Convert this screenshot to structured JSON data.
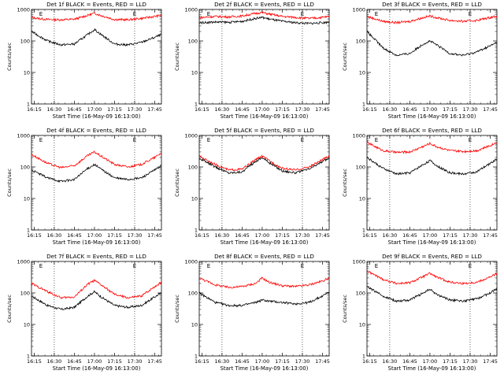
{
  "chart_data": [
    {
      "type": "line",
      "title": "Det 1f BLACK = Events, RED = LLD",
      "xlabel": "Start Time (16-May-09 16:13:00)",
      "ylabel": "Counts/sec",
      "yscale": "log",
      "ylim": [
        1,
        1000
      ],
      "x_ticks": [
        "16:15",
        "16:30",
        "16:45",
        "17:00",
        "17:15",
        "17:30",
        "17:45"
      ],
      "marker_label": "E",
      "marker_times": [
        "16:20",
        "17:30"
      ],
      "dotted_times": [
        "16:30",
        "17:30"
      ],
      "series": [
        {
          "color": "#ff0000",
          "x": [
            "16:13",
            "16:25",
            "16:35",
            "16:45",
            "16:55",
            "17:00",
            "17:05",
            "17:15",
            "17:25",
            "17:35",
            "17:45",
            "17:50"
          ],
          "values": [
            550,
            480,
            470,
            490,
            650,
            760,
            640,
            480,
            470,
            520,
            600,
            650
          ]
        },
        {
          "color": "#000000",
          "x": [
            "16:13",
            "16:25",
            "16:35",
            "16:45",
            "16:55",
            "17:00",
            "17:05",
            "17:15",
            "17:25",
            "17:35",
            "17:45",
            "17:50"
          ],
          "values": [
            200,
            100,
            75,
            80,
            160,
            230,
            160,
            80,
            75,
            90,
            130,
            160
          ]
        }
      ]
    },
    {
      "type": "line",
      "title": "Det 2f BLACK = Events, RED = LLD",
      "xlabel": "Start Time (16-May-09 16:13:00)",
      "ylabel": "Counts/sec",
      "yscale": "log",
      "ylim": [
        1,
        1000
      ],
      "x_ticks": [
        "16:15",
        "16:30",
        "16:45",
        "17:00",
        "17:15",
        "17:30",
        "17:45"
      ],
      "marker_label": "E",
      "marker_times": [
        "16:20",
        "17:30"
      ],
      "dotted_times": [
        "16:30",
        "17:30"
      ],
      "series": [
        {
          "color": "#ff0000",
          "x": [
            "16:13",
            "16:25",
            "16:35",
            "16:45",
            "16:55",
            "17:00",
            "17:05",
            "17:15",
            "17:25",
            "17:35",
            "17:45",
            "17:50"
          ],
          "values": [
            550,
            600,
            580,
            620,
            750,
            800,
            720,
            600,
            560,
            520,
            560,
            600
          ]
        },
        {
          "color": "#000000",
          "x": [
            "16:13",
            "16:25",
            "16:35",
            "16:45",
            "16:55",
            "17:00",
            "17:05",
            "17:15",
            "17:25",
            "17:35",
            "17:45",
            "17:50"
          ],
          "values": [
            380,
            400,
            390,
            420,
            520,
            560,
            500,
            420,
            380,
            360,
            380,
            400
          ]
        }
      ]
    },
    {
      "type": "line",
      "title": "Det 3f BLACK = Events, RED = LLD",
      "xlabel": "Start Time (16-May-09 16:13:00)",
      "ylabel": "Counts/sec",
      "yscale": "log",
      "ylim": [
        1,
        1000
      ],
      "x_ticks": [
        "16:15",
        "16:30",
        "16:45",
        "17:00",
        "17:15",
        "17:30",
        "17:45"
      ],
      "marker_label": "E",
      "marker_times": [
        "16:20",
        "17:30"
      ],
      "dotted_times": [
        "16:30",
        "17:30"
      ],
      "series": [
        {
          "color": "#ff0000",
          "x": [
            "16:13",
            "16:25",
            "16:35",
            "16:45",
            "16:55",
            "17:00",
            "17:05",
            "17:15",
            "17:25",
            "17:35",
            "17:45",
            "17:50"
          ],
          "values": [
            600,
            420,
            380,
            420,
            550,
            620,
            550,
            450,
            420,
            450,
            560,
            620
          ]
        },
        {
          "color": "#000000",
          "x": [
            "16:13",
            "16:25",
            "16:35",
            "16:45",
            "16:55",
            "17:00",
            "17:05",
            "17:15",
            "17:25",
            "17:35",
            "17:45",
            "17:50"
          ],
          "values": [
            200,
            60,
            35,
            40,
            80,
            100,
            75,
            40,
            35,
            45,
            70,
            90
          ]
        }
      ]
    },
    {
      "type": "line",
      "title": "Det 4f BLACK = Events, RED = LLD",
      "xlabel": "Start Time (16-May-09 16:13:00)",
      "ylabel": "Counts/sec",
      "yscale": "log",
      "ylim": [
        1,
        1000
      ],
      "x_ticks": [
        "16:15",
        "16:30",
        "16:45",
        "17:00",
        "17:15",
        "17:30",
        "17:45"
      ],
      "marker_label": "E",
      "marker_times": [
        "16:20",
        "17:30"
      ],
      "dotted_times": [
        "16:30",
        "17:30"
      ],
      "series": [
        {
          "color": "#ff0000",
          "x": [
            "16:13",
            "16:25",
            "16:35",
            "16:45",
            "16:55",
            "17:00",
            "17:05",
            "17:15",
            "17:25",
            "17:35",
            "17:45",
            "17:50"
          ],
          "values": [
            250,
            130,
            95,
            110,
            230,
            300,
            220,
            120,
            100,
            120,
            200,
            280
          ]
        },
        {
          "color": "#000000",
          "x": [
            "16:13",
            "16:25",
            "16:35",
            "16:45",
            "16:55",
            "17:00",
            "17:05",
            "17:15",
            "17:25",
            "17:35",
            "17:45",
            "17:50"
          ],
          "values": [
            80,
            45,
            35,
            40,
            90,
            120,
            85,
            45,
            40,
            45,
            80,
            110
          ]
        }
      ]
    },
    {
      "type": "line",
      "title": "Det 5f BLACK = Events, RED = LLD",
      "xlabel": "Start Time (16-May-09 16:13:00)",
      "ylabel": "Counts/sec",
      "yscale": "log",
      "ylim": [
        1,
        1000
      ],
      "x_ticks": [
        "16:15",
        "16:30",
        "16:45",
        "17:00",
        "17:15",
        "17:30",
        "17:45"
      ],
      "marker_label": "E",
      "marker_times": [
        "16:20",
        "17:30"
      ],
      "dotted_times": [
        "16:30",
        "17:30"
      ],
      "series": [
        {
          "color": "#ff0000",
          "x": [
            "16:13",
            "16:25",
            "16:35",
            "16:45",
            "16:55",
            "17:00",
            "17:05",
            "17:15",
            "17:25",
            "17:35",
            "17:45",
            "17:50"
          ],
          "values": [
            220,
            120,
            80,
            85,
            170,
            220,
            160,
            90,
            80,
            100,
            170,
            220
          ]
        },
        {
          "color": "#000000",
          "x": [
            "16:13",
            "16:25",
            "16:35",
            "16:45",
            "16:55",
            "17:00",
            "17:05",
            "17:15",
            "17:25",
            "17:35",
            "17:45",
            "17:50"
          ],
          "values": [
            190,
            100,
            65,
            70,
            150,
            200,
            140,
            75,
            65,
            85,
            150,
            190
          ]
        }
      ]
    },
    {
      "type": "line",
      "title": "Det 6f BLACK = Events, RED = LLD",
      "xlabel": "Start Time (16-May-09 16:13:00)",
      "ylabel": "Counts/sec",
      "yscale": "log",
      "ylim": [
        1,
        1000
      ],
      "x_ticks": [
        "16:15",
        "16:30",
        "16:45",
        "17:00",
        "17:15",
        "17:30",
        "17:45"
      ],
      "marker_label": "E",
      "marker_times": [
        "16:20",
        "17:30"
      ],
      "dotted_times": [
        "16:30",
        "17:30"
      ],
      "series": [
        {
          "color": "#ff0000",
          "x": [
            "16:13",
            "16:25",
            "16:35",
            "16:45",
            "16:55",
            "17:00",
            "17:05",
            "17:15",
            "17:25",
            "17:35",
            "17:45",
            "17:50"
          ],
          "values": [
            600,
            330,
            290,
            300,
            450,
            560,
            440,
            330,
            310,
            330,
            480,
            600
          ]
        },
        {
          "color": "#000000",
          "x": [
            "16:13",
            "16:25",
            "16:35",
            "16:45",
            "16:55",
            "17:00",
            "17:05",
            "17:15",
            "17:25",
            "17:35",
            "17:45",
            "17:50"
          ],
          "values": [
            200,
            90,
            60,
            65,
            120,
            160,
            110,
            65,
            60,
            70,
            130,
            180
          ]
        }
      ]
    },
    {
      "type": "line",
      "title": "Det 7f BLACK = Events, RED = LLD",
      "xlabel": "Start Time (16-May-09 16:13:00)",
      "ylabel": "Counts/sec",
      "yscale": "log",
      "ylim": [
        1,
        1000
      ],
      "x_ticks": [
        "16:15",
        "16:30",
        "16:45",
        "17:00",
        "17:15",
        "17:30",
        "17:45"
      ],
      "marker_label": "E",
      "marker_times": [
        "16:20",
        "17:30"
      ],
      "dotted_times": [
        "16:30",
        "17:30"
      ],
      "series": [
        {
          "color": "#ff0000",
          "x": [
            "16:13",
            "16:25",
            "16:35",
            "16:45",
            "16:55",
            "17:00",
            "17:05",
            "17:15",
            "17:25",
            "17:35",
            "17:45",
            "17:50"
          ],
          "values": [
            200,
            110,
            70,
            75,
            190,
            250,
            180,
            90,
            70,
            80,
            160,
            220
          ]
        },
        {
          "color": "#000000",
          "x": [
            "16:13",
            "16:25",
            "16:35",
            "16:45",
            "16:55",
            "17:00",
            "17:05",
            "17:15",
            "17:25",
            "17:35",
            "17:45",
            "17:50"
          ],
          "values": [
            80,
            40,
            30,
            35,
            80,
            110,
            75,
            40,
            35,
            40,
            75,
            100
          ]
        }
      ]
    },
    {
      "type": "line",
      "title": "Det 8f BLACK = Events, RED = LLD",
      "xlabel": "Start Time (16-May-09 16:13:00)",
      "ylabel": "Counts/sec",
      "yscale": "log",
      "ylim": [
        1,
        1000
      ],
      "x_ticks": [
        "16:15",
        "16:30",
        "16:45",
        "17:00",
        "17:15",
        "17:30",
        "17:45"
      ],
      "marker_label": "E",
      "marker_times": [
        "16:20",
        "17:30"
      ],
      "dotted_times": [
        "16:30",
        "17:30"
      ],
      "series": [
        {
          "color": "#ff0000",
          "x": [
            "16:13",
            "16:25",
            "16:35",
            "16:45",
            "16:55",
            "17:00",
            "17:05",
            "17:15",
            "17:25",
            "17:35",
            "17:45",
            "17:50"
          ],
          "values": [
            300,
            180,
            150,
            160,
            200,
            300,
            220,
            170,
            160,
            180,
            240,
            300
          ]
        },
        {
          "color": "#000000",
          "x": [
            "16:13",
            "16:25",
            "16:35",
            "16:45",
            "16:55",
            "17:00",
            "17:05",
            "17:15",
            "17:25",
            "17:35",
            "17:45",
            "17:50"
          ],
          "values": [
            100,
            50,
            40,
            40,
            50,
            60,
            55,
            50,
            45,
            50,
            80,
            110
          ]
        }
      ]
    },
    {
      "type": "line",
      "title": "Det 9f BLACK = Events, RED = LLD",
      "xlabel": "Start Time (16-May-09 16:13:00)",
      "ylabel": "Counts/sec",
      "yscale": "log",
      "ylim": [
        1,
        1000
      ],
      "x_ticks": [
        "16:15",
        "16:30",
        "16:45",
        "17:00",
        "17:15",
        "17:30",
        "17:45"
      ],
      "marker_label": "E",
      "marker_times": [
        "16:20",
        "17:30"
      ],
      "dotted_times": [
        "16:30",
        "17:30"
      ],
      "series": [
        {
          "color": "#ff0000",
          "x": [
            "16:13",
            "16:25",
            "16:35",
            "16:45",
            "16:55",
            "17:00",
            "17:05",
            "17:15",
            "17:25",
            "17:35",
            "17:45",
            "17:50"
          ],
          "values": [
            500,
            270,
            200,
            210,
            330,
            420,
            320,
            220,
            200,
            220,
            320,
            420
          ]
        },
        {
          "color": "#000000",
          "x": [
            "16:13",
            "16:25",
            "16:35",
            "16:45",
            "16:55",
            "17:00",
            "17:05",
            "17:15",
            "17:25",
            "17:35",
            "17:45",
            "17:50"
          ],
          "values": [
            160,
            80,
            55,
            60,
            100,
            130,
            90,
            60,
            55,
            65,
            100,
            140
          ]
        }
      ]
    }
  ]
}
